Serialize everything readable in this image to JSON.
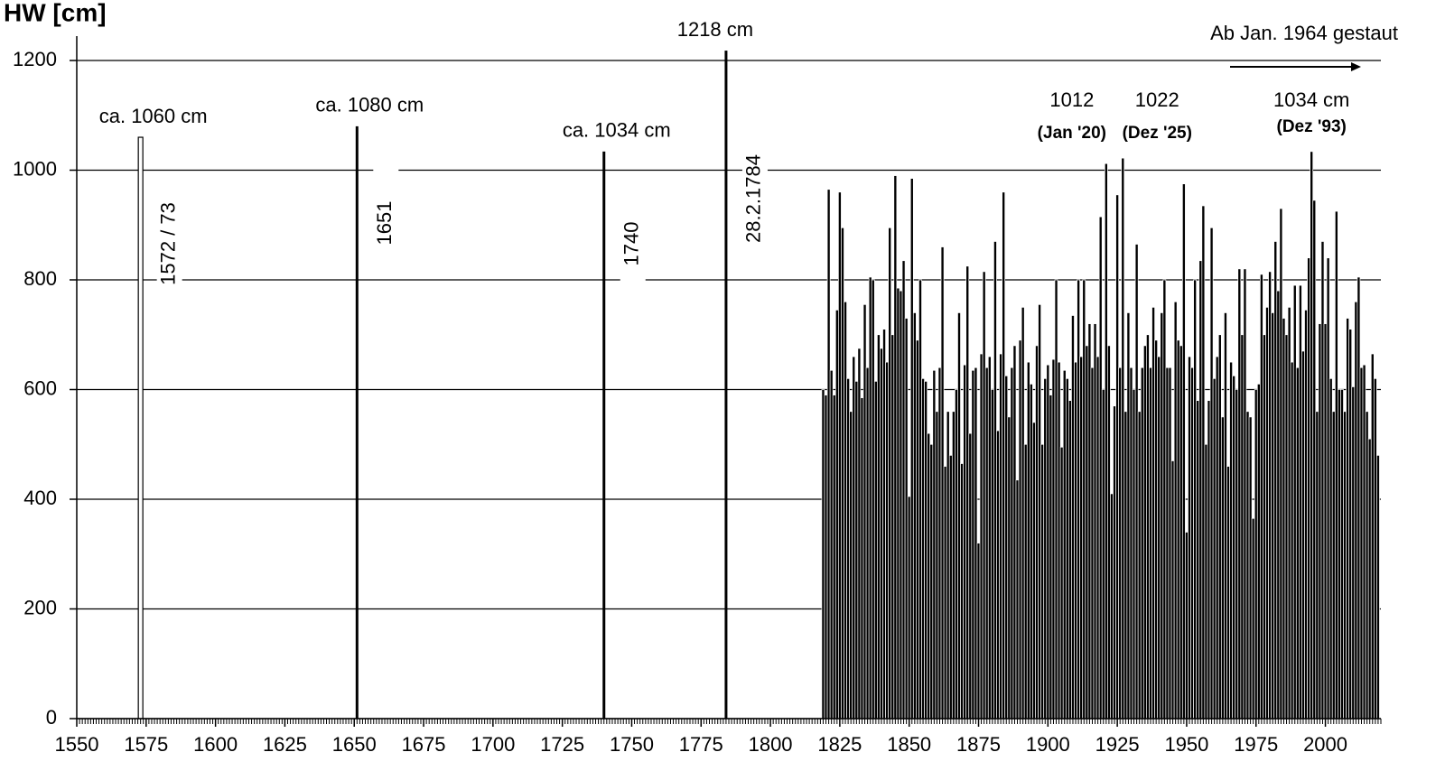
{
  "chart_data": {
    "type": "bar",
    "y_label": "HW [cm]",
    "xlim": [
      1550,
      2020
    ],
    "ylim": [
      0,
      1200
    ],
    "xticks": [
      1550,
      1575,
      1600,
      1625,
      1650,
      1675,
      1700,
      1725,
      1750,
      1775,
      1800,
      1825,
      1850,
      1875,
      1900,
      1925,
      1950,
      1975,
      2000
    ],
    "yticks": [
      0,
      200,
      400,
      600,
      800,
      1000,
      1200
    ],
    "grid": true,
    "color": "#000000",
    "events": [
      {
        "x": 1573,
        "value": 1060,
        "label": "ca. 1060 cm",
        "date": "1572 / 73",
        "color": "#ffffff"
      },
      {
        "x": 1651,
        "value": 1080,
        "label": "ca. 1080 cm",
        "date": "1651",
        "color": "#000000"
      },
      {
        "x": 1740,
        "value": 1034,
        "label": "ca. 1034 cm",
        "date": "1740",
        "color": "#000000"
      },
      {
        "x": 1784,
        "value": 1218,
        "label": "1218 cm",
        "date": "28.2.1784",
        "color": "#000000"
      }
    ],
    "annotations": [
      {
        "label": "1012",
        "note": "(Jan '20)"
      },
      {
        "label": "1022",
        "note": "(Dez '25)"
      },
      {
        "label": "1034 cm",
        "note": "(Dez '93)"
      }
    ],
    "dam_note": "Ab Jan. 1964 gestaut",
    "x": [
      1819,
      1820,
      1821,
      1822,
      1823,
      1824,
      1825,
      1826,
      1827,
      1828,
      1829,
      1830,
      1831,
      1832,
      1833,
      1834,
      1835,
      1836,
      1837,
      1838,
      1839,
      1840,
      1841,
      1842,
      1843,
      1844,
      1845,
      1846,
      1847,
      1848,
      1849,
      1850,
      1851,
      1852,
      1853,
      1854,
      1855,
      1856,
      1857,
      1858,
      1859,
      1860,
      1861,
      1862,
      1863,
      1864,
      1865,
      1866,
      1867,
      1868,
      1869,
      1870,
      1871,
      1872,
      1873,
      1874,
      1875,
      1876,
      1877,
      1878,
      1879,
      1880,
      1881,
      1882,
      1883,
      1884,
      1885,
      1886,
      1887,
      1888,
      1889,
      1890,
      1891,
      1892,
      1893,
      1894,
      1895,
      1896,
      1897,
      1898,
      1899,
      1900,
      1901,
      1902,
      1903,
      1904,
      1905,
      1906,
      1907,
      1908,
      1909,
      1910,
      1911,
      1912,
      1913,
      1914,
      1915,
      1916,
      1917,
      1918,
      1919,
      1920,
      1921,
      1922,
      1923,
      1924,
      1925,
      1926,
      1927,
      1928,
      1929,
      1930,
      1931,
      1932,
      1933,
      1934,
      1935,
      1936,
      1937,
      1938,
      1939,
      1940,
      1941,
      1942,
      1943,
      1944,
      1945,
      1946,
      1947,
      1948,
      1949,
      1950,
      1951,
      1952,
      1953,
      1954,
      1955,
      1956,
      1957,
      1958,
      1959,
      1960,
      1961,
      1962,
      1963,
      1964,
      1965,
      1966,
      1967,
      1968,
      1969,
      1970,
      1971,
      1972,
      1973,
      1974,
      1975,
      1976,
      1977,
      1978,
      1979,
      1980,
      1981,
      1982,
      1983,
      1984,
      1985,
      1986,
      1987,
      1988,
      1989,
      1990,
      1991,
      1992,
      1993,
      1994,
      1995,
      1996,
      1997,
      1998,
      1999,
      2000,
      2001,
      2002,
      2003,
      2004,
      2005,
      2006,
      2007,
      2008,
      2009,
      2010,
      2011,
      2012,
      2013,
      2014,
      2015,
      2016,
      2017,
      2018,
      2019
    ],
    "values": [
      600,
      590,
      965,
      635,
      590,
      745,
      960,
      895,
      760,
      620,
      560,
      660,
      615,
      675,
      585,
      755,
      640,
      805,
      800,
      615,
      700,
      675,
      710,
      650,
      895,
      700,
      990,
      785,
      780,
      835,
      730,
      405,
      985,
      740,
      690,
      800,
      620,
      615,
      520,
      500,
      635,
      560,
      640,
      860,
      460,
      560,
      480,
      560,
      600,
      740,
      465,
      645,
      825,
      520,
      635,
      640,
      320,
      665,
      815,
      640,
      660,
      600,
      870,
      525,
      665,
      960,
      625,
      550,
      640,
      680,
      435,
      690,
      750,
      500,
      650,
      610,
      540,
      680,
      755,
      500,
      620,
      645,
      590,
      655,
      800,
      650,
      495,
      635,
      620,
      580,
      735,
      650,
      800,
      660,
      800,
      680,
      720,
      640,
      720,
      660,
      915,
      600,
      1012,
      680,
      410,
      570,
      955,
      640,
      1022,
      560,
      740,
      640,
      600,
      865,
      560,
      640,
      680,
      700,
      640,
      750,
      690,
      660,
      740,
      800,
      640,
      640,
      470,
      760,
      690,
      680,
      975,
      340,
      660,
      640,
      800,
      580,
      835,
      935,
      500,
      580,
      895,
      620,
      660,
      700,
      550,
      740,
      460,
      650,
      625,
      600,
      820,
      700,
      820,
      560,
      550,
      365,
      600,
      610,
      810,
      700,
      750,
      815,
      740,
      870,
      780,
      930,
      730,
      700,
      750,
      650,
      790,
      640,
      790,
      670,
      745,
      840,
      1034,
      945,
      560,
      720,
      870,
      720,
      840,
      620,
      560,
      925,
      600,
      600,
      560,
      730,
      710,
      605,
      760,
      805,
      640,
      645,
      560,
      510,
      665,
      620,
      480
    ]
  }
}
